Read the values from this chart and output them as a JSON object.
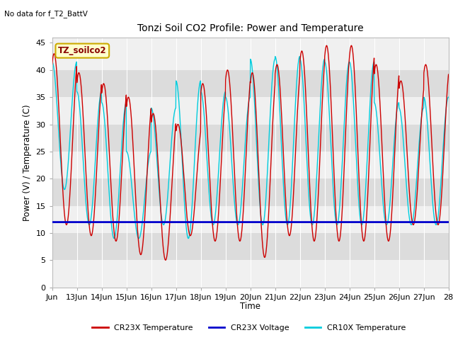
{
  "title": "Tonzi Soil CO2 Profile: Power and Temperature",
  "top_left_text": "No data for f_T2_BattV",
  "ylabel": "Power (V) / Temperature (C)",
  "xlabel": "Time",
  "ylim": [
    0,
    46
  ],
  "yticks": [
    0,
    5,
    10,
    15,
    20,
    25,
    30,
    35,
    40,
    45
  ],
  "total_days": 16,
  "xtick_labels": [
    "Jun",
    "13Jun",
    "14Jun",
    "15Jun",
    "16Jun",
    "17Jun",
    "18Jun",
    "19Jun",
    "20Jun",
    "21Jun",
    "22Jun",
    "23Jun",
    "24Jun",
    "25Jun",
    "26Jun",
    "27Jun",
    "28"
  ],
  "bg_color_light": "#f0f0f0",
  "bg_color_dark": "#dcdcdc",
  "cr23x_temp_color": "#cc0000",
  "cr23x_volt_color": "#0000cc",
  "cr10x_temp_color": "#00ccdd",
  "legend_label_box": "TZ_soilco2",
  "legend_box_bg": "#ffffcc",
  "legend_box_border": "#ccaa00",
  "voltage_value": 12.0,
  "cr23x_temp_peaks": [
    43.0,
    39.5,
    37.5,
    35.0,
    32.0,
    30.0,
    37.5,
    40.0,
    39.5,
    41.0,
    43.5,
    44.5,
    44.5,
    41.0,
    38.0,
    41.0
  ],
  "cr23x_temp_troughs": [
    11.5,
    9.5,
    8.5,
    6.0,
    5.0,
    9.5,
    8.5,
    8.5,
    5.5,
    9.5,
    8.5,
    8.5,
    8.5,
    8.5,
    11.5,
    11.5
  ],
  "cr10x_temp_peaks": [
    41.5,
    36.0,
    34.0,
    25.0,
    33.0,
    38.0,
    36.0,
    35.0,
    42.0,
    42.5,
    42.0,
    41.5,
    41.5,
    34.0,
    33.0,
    35.0
  ],
  "cr10x_temp_troughs": [
    18.0,
    11.5,
    9.0,
    9.0,
    11.5,
    9.0,
    11.5,
    11.5,
    11.5,
    11.5,
    11.5,
    11.5,
    11.5,
    11.5,
    11.5,
    11.5
  ],
  "cr23x_phase": 0.58,
  "cr10x_phase": 0.5
}
